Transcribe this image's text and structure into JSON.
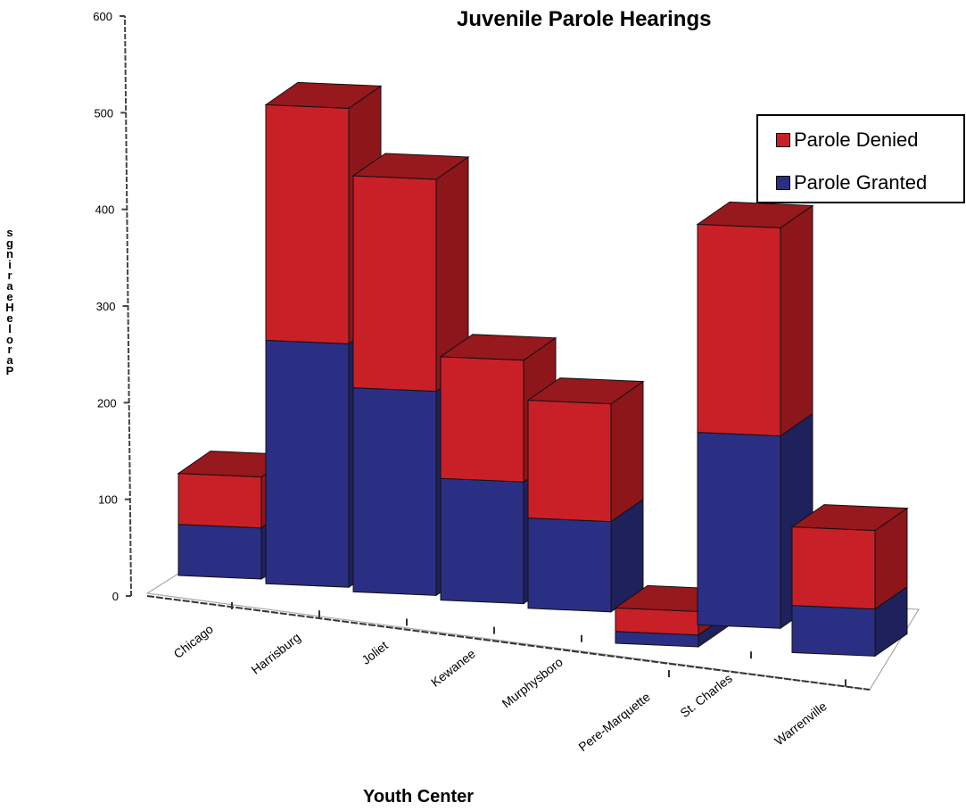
{
  "chart_data": {
    "type": "bar",
    "stacked": true,
    "three_d": true,
    "title": "Juvenile Parole Hearings",
    "xlabel": "Youth Center",
    "ylabel": "sgnirae H el oraP",
    "categories": [
      "Chicago",
      "Harrisburg",
      "Joliet",
      "Kewanee",
      "Murphysboro",
      "Pere-Marquette",
      "St. Charles",
      "Warrenville"
    ],
    "series": [
      {
        "name": "Parole Granted",
        "values": [
          65,
          310,
          260,
          155,
          115,
          15,
          245,
          60
        ],
        "color": "#2b2f83"
      },
      {
        "name": "Parole Denied",
        "values": [
          65,
          300,
          270,
          155,
          150,
          30,
          265,
          100
        ],
        "color": "#c92027"
      }
    ],
    "ylim": [
      0,
      600
    ],
    "yticks": [
      "0",
      "100",
      "200",
      "300",
      "400",
      "500",
      "600"
    ],
    "legend_position": "right",
    "grid": false
  }
}
